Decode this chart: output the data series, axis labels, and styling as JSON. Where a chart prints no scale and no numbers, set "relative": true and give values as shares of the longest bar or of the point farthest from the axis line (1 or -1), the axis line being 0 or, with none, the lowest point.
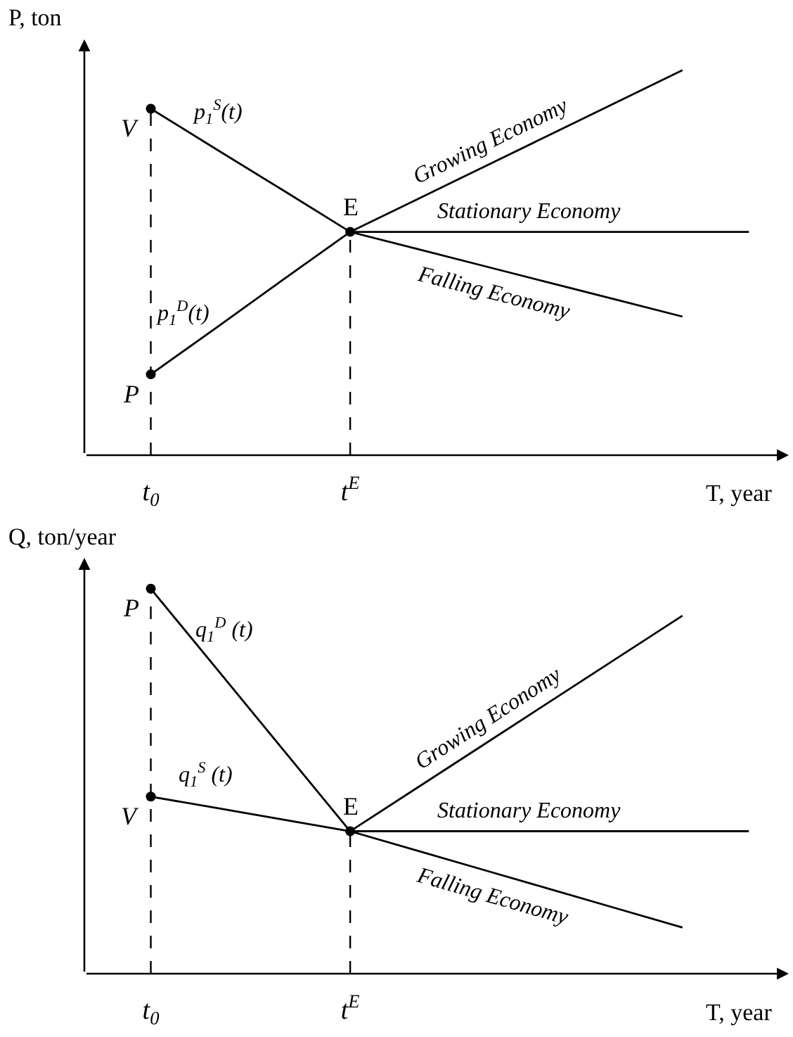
{
  "chart_data": [
    {
      "type": "line",
      "relative": true,
      "xlabel": "T, year",
      "ylabel": "P, ton",
      "categories": [
        "t$_{0}$",
        null,
        null,
        "t$^{E}$",
        null,
        null,
        null,
        null,
        null,
        null
      ],
      "tick_labels": "x",
      "series": [
        {
          "name": "p$_{1}$$^{S}$(t)",
          "color": "#000000",
          "values": [
            0.9,
            0.793,
            0.687,
            0.58,
            null,
            null,
            null,
            null,
            null,
            null
          ]
        },
        {
          "name": "p$_{1}$$^{D}$(t)",
          "color": "#000000",
          "values": [
            0.21,
            0.333,
            0.457,
            0.58,
            null,
            null,
            null,
            null,
            null,
            null
          ]
        },
        {
          "name": "Growing Economy",
          "color": "#000000",
          "values": [
            null,
            null,
            null,
            0.58,
            0.664,
            0.748,
            0.832,
            0.916,
            1.0,
            null
          ]
        },
        {
          "name": "Stationary Economy",
          "color": "#000000",
          "values": [
            null,
            null,
            null,
            0.58,
            0.58,
            0.58,
            0.58,
            0.58,
            0.58,
            0.58
          ]
        },
        {
          "name": "Falling Economy",
          "color": "#000000",
          "values": [
            null,
            null,
            null,
            0.58,
            0.536,
            0.492,
            0.448,
            0.404,
            0.36,
            null
          ]
        },
        {
          "type": "lollipop",
          "marker": "circle",
          "line_style": "dashed",
          "color": "#000000",
          "values": [
            0.9,
            null,
            null,
            0.58,
            null,
            null,
            null,
            null,
            null,
            null
          ]
        },
        {
          "type": "scatter",
          "marker": "circle",
          "color": "#000000",
          "values": [
            0.21,
            null,
            null,
            null,
            null,
            null,
            null,
            null,
            null,
            null
          ]
        }
      ],
      "annotations": [
        {
          "text": "V",
          "x": "t$_{0}$",
          "y": 0.9
        },
        {
          "text": "P",
          "x": "t$_{0}$",
          "y": 0.21
        },
        {
          "text": "E",
          "x": "t$^{E}$",
          "y": 0.58
        }
      ]
    },
    {
      "type": "line",
      "relative": true,
      "xlabel": "T, year",
      "ylabel": "Q, ton/year",
      "categories": [
        "t$_{0}$",
        null,
        null,
        "t$^{E}$",
        null,
        null,
        null,
        null,
        null,
        null
      ],
      "tick_labels": "x",
      "series": [
        {
          "name": "q$_{1}$$^{D}$ (t)",
          "color": "#000000",
          "values": [
            1.0,
            0.79,
            0.58,
            0.37,
            null,
            null,
            null,
            null,
            null,
            null
          ]
        },
        {
          "name": "q$_{1}$$^{S}$ (t)",
          "color": "#000000",
          "values": [
            0.46,
            0.43,
            0.4,
            0.37,
            null,
            null,
            null,
            null,
            null,
            null
          ]
        },
        {
          "name": "Growing Economy",
          "color": "#000000",
          "values": [
            null,
            null,
            null,
            0.37,
            0.482,
            0.594,
            0.706,
            0.818,
            0.93,
            null
          ]
        },
        {
          "name": "Stationary Economy",
          "color": "#000000",
          "values": [
            null,
            null,
            null,
            0.37,
            0.37,
            0.37,
            0.37,
            0.37,
            0.37,
            0.37
          ]
        },
        {
          "name": "Falling Economy",
          "color": "#000000",
          "values": [
            null,
            null,
            null,
            0.37,
            0.32,
            0.27,
            0.22,
            0.17,
            0.12,
            null
          ]
        },
        {
          "type": "lollipop",
          "marker": "circle",
          "line_style": "dashed",
          "color": "#000000",
          "values": [
            1.0,
            null,
            null,
            0.37,
            null,
            null,
            null,
            null,
            null,
            null
          ]
        },
        {
          "type": "scatter",
          "marker": "circle",
          "color": "#000000",
          "values": [
            0.46,
            null,
            null,
            null,
            null,
            null,
            null,
            null,
            null,
            null
          ]
        }
      ],
      "annotations": [
        {
          "text": "P",
          "x": "t$_{0}$",
          "y": 1.0
        },
        {
          "text": "V",
          "x": "t$_{0}$",
          "y": 0.46
        },
        {
          "text": "E",
          "x": "t$^{E}$",
          "y": 0.37
        }
      ]
    }
  ]
}
